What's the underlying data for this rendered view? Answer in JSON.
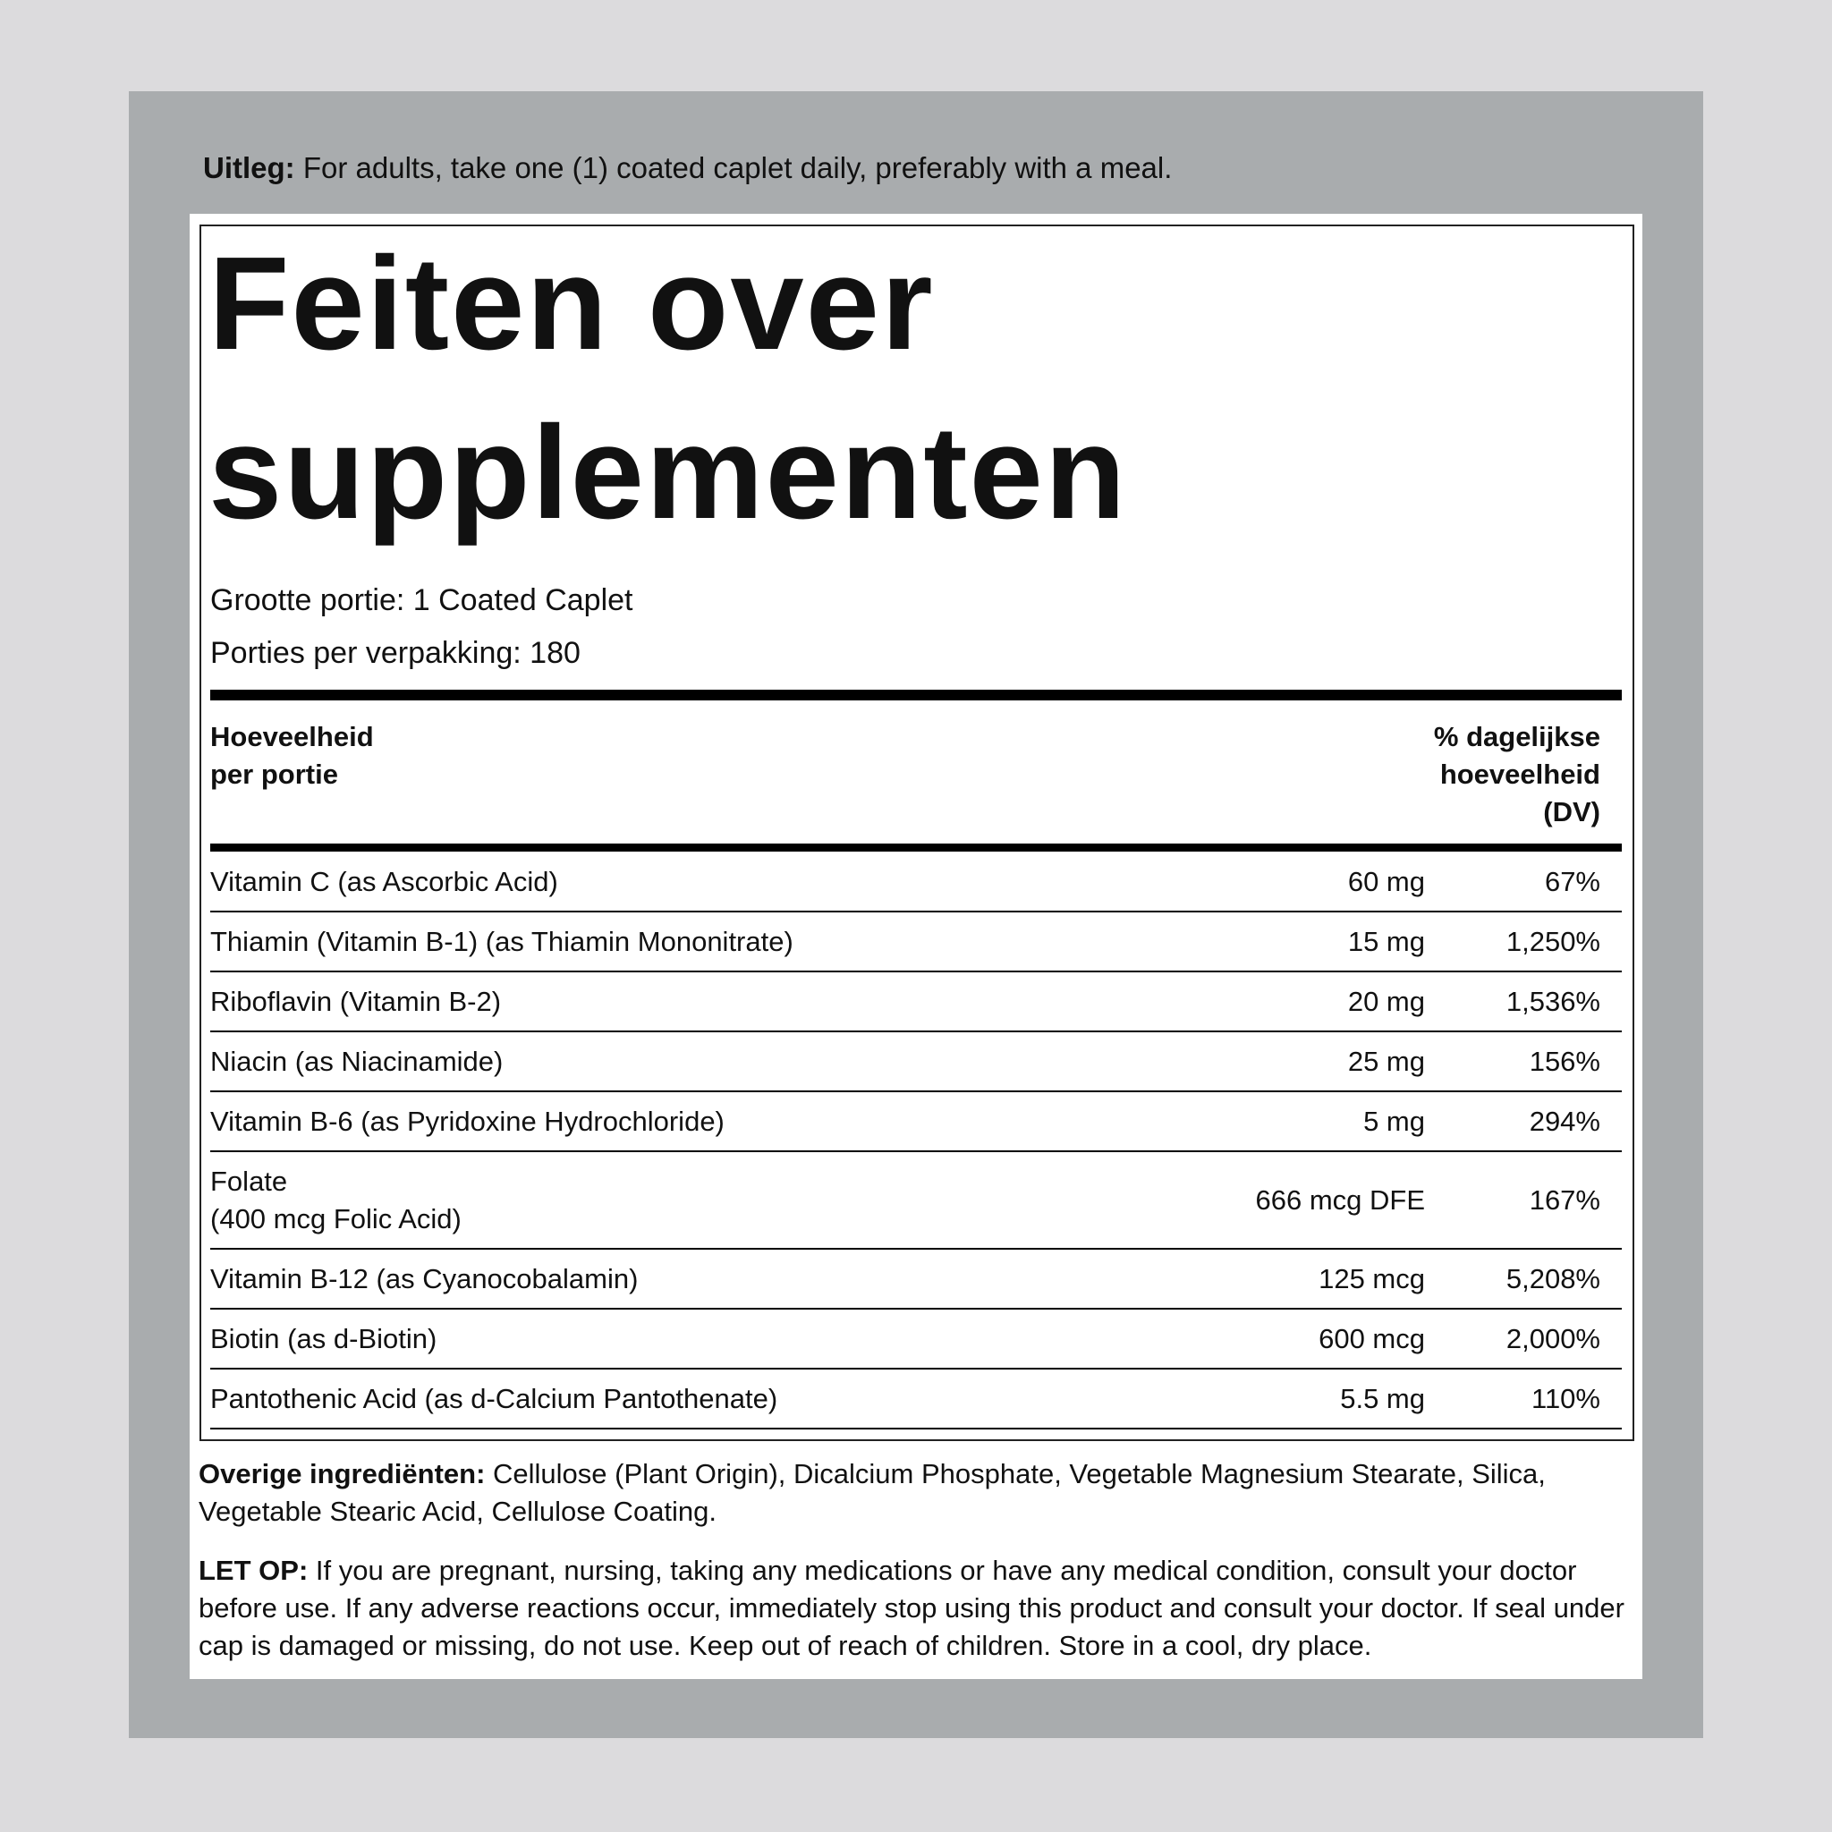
{
  "directions": {
    "label": "Uitleg:",
    "text": "For adults, take one (1) coated caplet daily, preferably with a meal."
  },
  "title": [
    "Feiten over",
    "supplementen"
  ],
  "serving_size": "Grootte portie: 1 Coated Caplet",
  "servings_per_container": "Porties per verpakking: 180",
  "table": {
    "header": {
      "amount": [
        "Hoeveelheid",
        "per portie"
      ],
      "dv": [
        "% dagelijkse",
        "hoeveelheid",
        "(DV)"
      ]
    },
    "rows": [
      {
        "name": [
          "Vitamin C (as Ascorbic Acid)"
        ],
        "amount": "60 mg",
        "dv": "67%"
      },
      {
        "name": [
          "Thiamin (Vitamin B-1) (as Thiamin Mononitrate)"
        ],
        "amount": "15 mg",
        "dv": "1,250%"
      },
      {
        "name": [
          "Riboflavin (Vitamin B-2)"
        ],
        "amount": "20 mg",
        "dv": "1,536%"
      },
      {
        "name": [
          "Niacin (as Niacinamide)"
        ],
        "amount": "25 mg",
        "dv": "156%"
      },
      {
        "name": [
          "Vitamin B-6 (as Pyridoxine Hydrochloride)"
        ],
        "amount": "5 mg",
        "dv": "294%"
      },
      {
        "name": [
          "Folate",
          "(400 mcg Folic Acid)"
        ],
        "amount": "666 mcg DFE",
        "dv": "167%"
      },
      {
        "name": [
          "Vitamin B-12 (as Cyanocobalamin)"
        ],
        "amount": "125 mcg",
        "dv": "5,208%"
      },
      {
        "name": [
          "Biotin (as d-Biotin)"
        ],
        "amount": "600 mcg",
        "dv": "2,000%"
      },
      {
        "name": [
          "Pantothenic Acid (as d-Calcium Pantothenate)"
        ],
        "amount": "5.5 mg",
        "dv": "110%"
      }
    ]
  },
  "other_ingredients": {
    "label": "Overige ingrediënten:",
    "text": "Cellulose (Plant Origin), Dicalcium Phosphate, Vegetable Magnesium Stearate, Silica, Vegetable Stearic Acid, Cellulose Coating."
  },
  "warning": {
    "label": "LET OP:",
    "text": "If you are pregnant, nursing, taking any medications or have any medical condition, consult your doctor before use. If any adverse reactions occur, immediately stop using this product and consult your doctor. If seal under cap is damaged or missing, do not use. Keep out of reach of children. Store in a cool, dry place."
  }
}
